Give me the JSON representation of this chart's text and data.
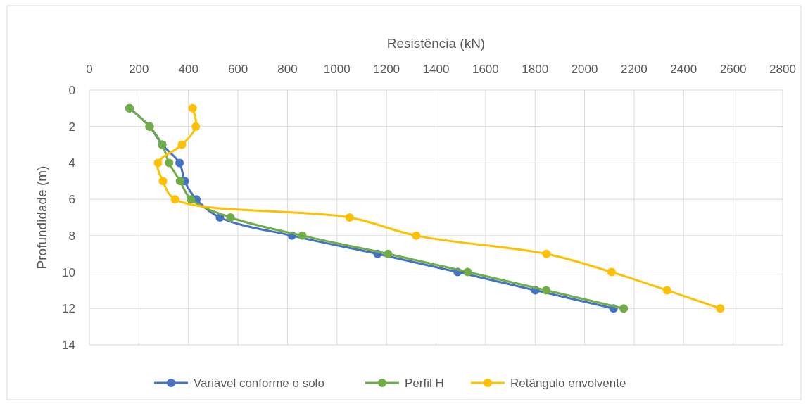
{
  "chart_data": {
    "type": "line",
    "xlabel": "Resistência (kN)",
    "ylabel": "Profundidade (m)",
    "xlim": [
      0,
      2800
    ],
    "xticks": [
      0,
      200,
      400,
      600,
      800,
      1000,
      1200,
      1400,
      1600,
      1800,
      2000,
      2200,
      2400,
      2600,
      2800
    ],
    "ylim": [
      14,
      0
    ],
    "yticks": [
      0,
      2,
      4,
      6,
      8,
      10,
      12,
      14
    ],
    "grid": true,
    "legend": "bottom",
    "marker": "circle",
    "line_style": "solid",
    "series": [
      {
        "name": "Variável conforme o solo",
        "color": "#4472c4",
        "x": [
          162,
          243,
          294,
          364,
          385,
          432,
          527,
          818,
          1164,
          1487,
          1801,
          2117
        ],
        "values": [
          1,
          2,
          3,
          4,
          5,
          6,
          7,
          8,
          9,
          10,
          11,
          12
        ]
      },
      {
        "name": "Perfil H",
        "color": "#70ad47",
        "x": [
          162,
          243,
          294,
          322,
          366,
          410,
          570,
          860,
          1206,
          1528,
          1845,
          2158
        ],
        "values": [
          1,
          2,
          3,
          4,
          5,
          6,
          7,
          8,
          9,
          10,
          11,
          12
        ]
      },
      {
        "name": "Retângulo envolvente",
        "color": "#ffc000",
        "x": [
          417,
          430,
          374,
          277,
          297,
          346,
          1051,
          1320,
          1846,
          2109,
          2333,
          2548
        ],
        "values": [
          1,
          2,
          3,
          4,
          5,
          6,
          7,
          8,
          9,
          10,
          11,
          12
        ]
      }
    ]
  }
}
